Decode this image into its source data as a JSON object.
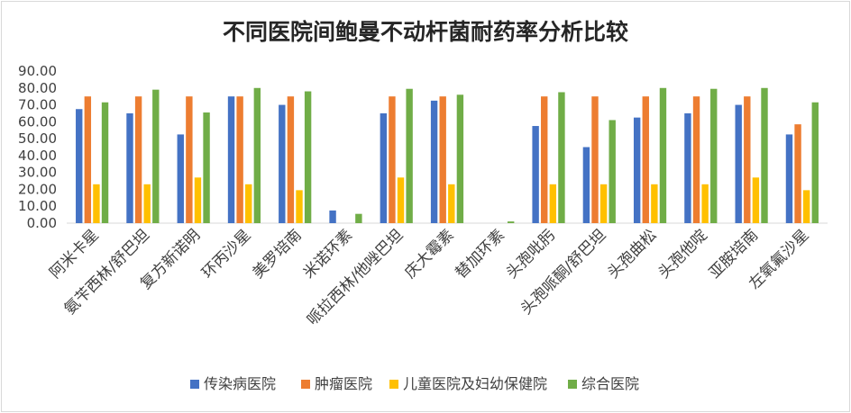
{
  "chart_data": {
    "type": "bar",
    "title": "不同医院间鲍曼不动杆菌耐药率分析比较",
    "ylim": [
      0,
      90
    ],
    "yticks": [
      "0.00",
      "10.00",
      "20.00",
      "30.00",
      "40.00",
      "50.00",
      "60.00",
      "70.00",
      "80.00",
      "90.00"
    ],
    "grid": false,
    "legend_position": "bottom",
    "categories": [
      "阿米卡星",
      "氨苄西林/舒巴坦",
      "复方新诺明",
      "环丙沙星",
      "美罗培南",
      "米诺环素",
      "哌拉西林/他唑巴坦",
      "庆大霉素",
      "替加环素",
      "头孢吡肟",
      "头孢哌酮/舒巴坦",
      "头孢曲松",
      "头孢他啶",
      "亚胺培南",
      "左氧氟沙星"
    ],
    "series": [
      {
        "name": "传染病医院",
        "color": "#4472C4",
        "values": [
          67.5,
          65,
          52.5,
          75,
          70,
          7.5,
          65,
          72.5,
          0,
          57.5,
          45,
          62.5,
          65,
          70,
          52.5
        ]
      },
      {
        "name": "肿瘤医院",
        "color": "#ED7D31",
        "values": [
          75,
          75,
          75,
          75,
          75,
          0,
          75,
          75,
          0,
          75,
          75,
          75,
          75,
          75,
          58.5
        ]
      },
      {
        "name": "儿童医院及妇幼保健院",
        "color": "#FFC000",
        "values": [
          23,
          23,
          27,
          23,
          19.5,
          0,
          27,
          23,
          0,
          23,
          23,
          23,
          23,
          27,
          19.5
        ]
      },
      {
        "name": "综合医院",
        "color": "#70AD47",
        "values": [
          71.5,
          79,
          65.5,
          80,
          78,
          5.5,
          79.5,
          76,
          1,
          77.5,
          61,
          80,
          79.5,
          80,
          71.5
        ]
      }
    ]
  }
}
